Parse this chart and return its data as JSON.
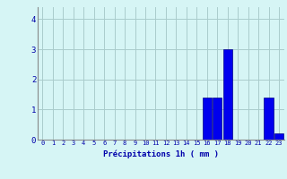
{
  "hours": [
    0,
    1,
    2,
    3,
    4,
    5,
    6,
    7,
    8,
    9,
    10,
    11,
    12,
    13,
    14,
    15,
    16,
    17,
    18,
    19,
    20,
    21,
    22,
    23
  ],
  "values": [
    0,
    0,
    0,
    0,
    0,
    0,
    0,
    0,
    0,
    0,
    0,
    0,
    0,
    0,
    0,
    0,
    1.4,
    1.4,
    3.0,
    0,
    0,
    0,
    1.4,
    0.2
  ],
  "bar_color": "#0000ee",
  "bar_edge_color": "#00008b",
  "background_color": "#d6f5f5",
  "grid_color": "#aacccc",
  "xlabel": "Précipitations 1h ( mm )",
  "xlabel_color": "#0000aa",
  "tick_color": "#0000aa",
  "ylim": [
    0,
    4.4
  ],
  "yticks": [
    0,
    1,
    2,
    3,
    4
  ],
  "xlim": [
    -0.5,
    23.5
  ]
}
